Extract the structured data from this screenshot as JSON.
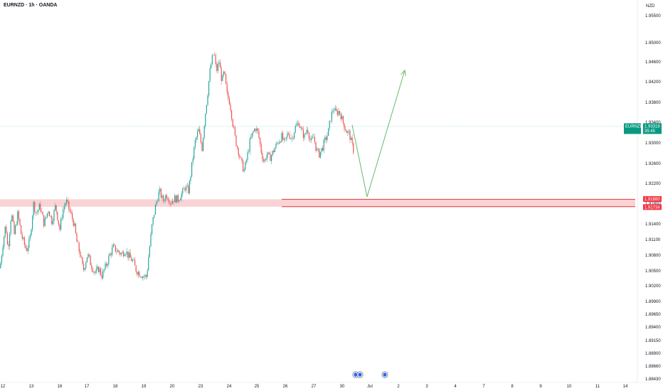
{
  "header": {
    "title": "EURNZD · 1h · OANDA",
    "currency": "NZD"
  },
  "colors": {
    "up": "#26a69a",
    "down": "#ef5350",
    "zone_fill": "#f8c8cb",
    "zone_line": "#e53935",
    "arrow": "#66bb6a",
    "current_line": "#9ed8c9",
    "tag_green": "#089981",
    "tag_red": "#f23645",
    "event_blue": "#2962ff"
  },
  "chart_data": {
    "type": "candlestick",
    "symbol": "EURNZD",
    "interval": "1h",
    "source": "OANDA",
    "ylim": [
      1.8843,
      1.9568
    ],
    "y_ticks": [
      1.955,
      1.95,
      1.946,
      1.942,
      1.938,
      1.934,
      1.93,
      1.926,
      1.922,
      1.918,
      1.914,
      1.911,
      1.908,
      1.905,
      1.902,
      1.899,
      1.8965,
      1.894,
      1.8915,
      1.889,
      1.8866,
      1.8843
    ],
    "x_ticks": [
      "12",
      "13",
      "16",
      "17",
      "18",
      "19",
      "20",
      "23",
      "24",
      "25",
      "26",
      "27",
      "30",
      "Jul",
      "2",
      "3",
      "4",
      "7",
      "8",
      "9",
      "10",
      "11",
      "14"
    ],
    "current_price": {
      "symbol": "EURNZD",
      "value": "1.93318",
      "countdown": "35:45",
      "numeric": 1.93318
    },
    "zone": {
      "top": 1.9188,
      "bottom": 1.91734,
      "top_label": "1.91880",
      "bottom_label": "1.91734"
    },
    "projection": [
      {
        "date": "Jun 30",
        "price": 1.9335
      },
      {
        "date": "Jul 1",
        "price": 1.9193
      },
      {
        "date": "Jul 2",
        "price": 1.9443
      }
    ],
    "price_path": [
      [
        0,
        1.9055
      ],
      [
        4,
        1.9102
      ],
      [
        8,
        1.914
      ],
      [
        11,
        1.909
      ],
      [
        16,
        1.9162
      ],
      [
        20,
        1.912
      ],
      [
        25,
        1.916
      ],
      [
        30,
        1.9118
      ],
      [
        37,
        1.909
      ],
      [
        42,
        1.9108
      ],
      [
        47,
        1.918
      ],
      [
        51,
        1.916
      ],
      [
        56,
        1.9175
      ],
      [
        62,
        1.914
      ],
      [
        68,
        1.9168
      ],
      [
        73,
        1.9145
      ],
      [
        78,
        1.9175
      ],
      [
        84,
        1.913
      ],
      [
        88,
        1.9165
      ],
      [
        93,
        1.9185
      ],
      [
        98,
        1.9165
      ],
      [
        104,
        1.914
      ],
      [
        108,
        1.9105
      ],
      [
        113,
        1.908
      ],
      [
        117,
        1.905
      ],
      [
        123,
        1.9082
      ],
      [
        128,
        1.9062
      ],
      [
        134,
        1.9045
      ],
      [
        139,
        1.9055
      ],
      [
        143,
        1.904
      ],
      [
        149,
        1.906
      ],
      [
        154,
        1.908
      ],
      [
        159,
        1.9095
      ],
      [
        165,
        1.9088
      ],
      [
        171,
        1.9082
      ],
      [
        176,
        1.909
      ],
      [
        181,
        1.9078
      ],
      [
        187,
        1.9068
      ],
      [
        191,
        1.9052
      ],
      [
        196,
        1.9045
      ],
      [
        201,
        1.904
      ],
      [
        206,
        1.9038
      ],
      [
        209,
        1.908
      ],
      [
        214,
        1.914
      ],
      [
        219,
        1.9178
      ],
      [
        224,
        1.9205
      ],
      [
        229,
        1.9185
      ],
      [
        234,
        1.9198
      ],
      [
        240,
        1.9182
      ],
      [
        245,
        1.919
      ],
      [
        250,
        1.9188
      ],
      [
        255,
        1.9198
      ],
      [
        260,
        1.9212
      ],
      [
        265,
        1.9205
      ],
      [
        270,
        1.926
      ],
      [
        274,
        1.93
      ],
      [
        279,
        1.9325
      ],
      [
        284,
        1.929
      ],
      [
        288,
        1.935
      ],
      [
        292,
        1.94
      ],
      [
        295,
        1.944
      ],
      [
        298,
        1.9465
      ],
      [
        301,
        1.948
      ],
      [
        304,
        1.944
      ],
      [
        308,
        1.946
      ],
      [
        312,
        1.942
      ],
      [
        315,
        1.944
      ],
      [
        319,
        1.9395
      ],
      [
        323,
        1.938
      ],
      [
        327,
        1.934
      ],
      [
        331,
        1.9305
      ],
      [
        335,
        1.9285
      ],
      [
        339,
        1.9262
      ],
      [
        343,
        1.9245
      ],
      [
        347,
        1.927
      ],
      [
        351,
        1.93
      ],
      [
        355,
        1.9318
      ],
      [
        359,
        1.933
      ],
      [
        363,
        1.9318
      ],
      [
        367,
        1.9285
      ],
      [
        371,
        1.9262
      ],
      [
        375,
        1.9278
      ],
      [
        379,
        1.927
      ],
      [
        383,
        1.928
      ],
      [
        387,
        1.9292
      ],
      [
        392,
        1.9305
      ],
      [
        396,
        1.9312
      ],
      [
        400,
        1.9298
      ],
      [
        405,
        1.932
      ],
      [
        410,
        1.9308
      ],
      [
        415,
        1.933
      ],
      [
        420,
        1.934
      ],
      [
        424,
        1.9322
      ],
      [
        428,
        1.9312
      ],
      [
        432,
        1.933
      ],
      [
        437,
        1.93
      ],
      [
        441,
        1.9312
      ],
      [
        445,
        1.9285
      ],
      [
        449,
        1.9278
      ],
      [
        453,
        1.929
      ],
      [
        457,
        1.9305
      ],
      [
        461,
        1.9318
      ],
      [
        465,
        1.935
      ],
      [
        469,
        1.937
      ],
      [
        472,
        1.9358
      ],
      [
        476,
        1.9362
      ],
      [
        479,
        1.9355
      ],
      [
        482,
        1.934
      ],
      [
        485,
        1.933
      ],
      [
        488,
        1.932
      ],
      [
        491,
        1.9318
      ],
      [
        494,
        1.93
      ],
      [
        497,
        1.9285
      ],
      [
        500,
        1.9332
      ]
    ],
    "events": [
      {
        "date": "Jun 30"
      },
      {
        "date": "Jun 30"
      },
      {
        "date": "Jul 1"
      }
    ]
  }
}
